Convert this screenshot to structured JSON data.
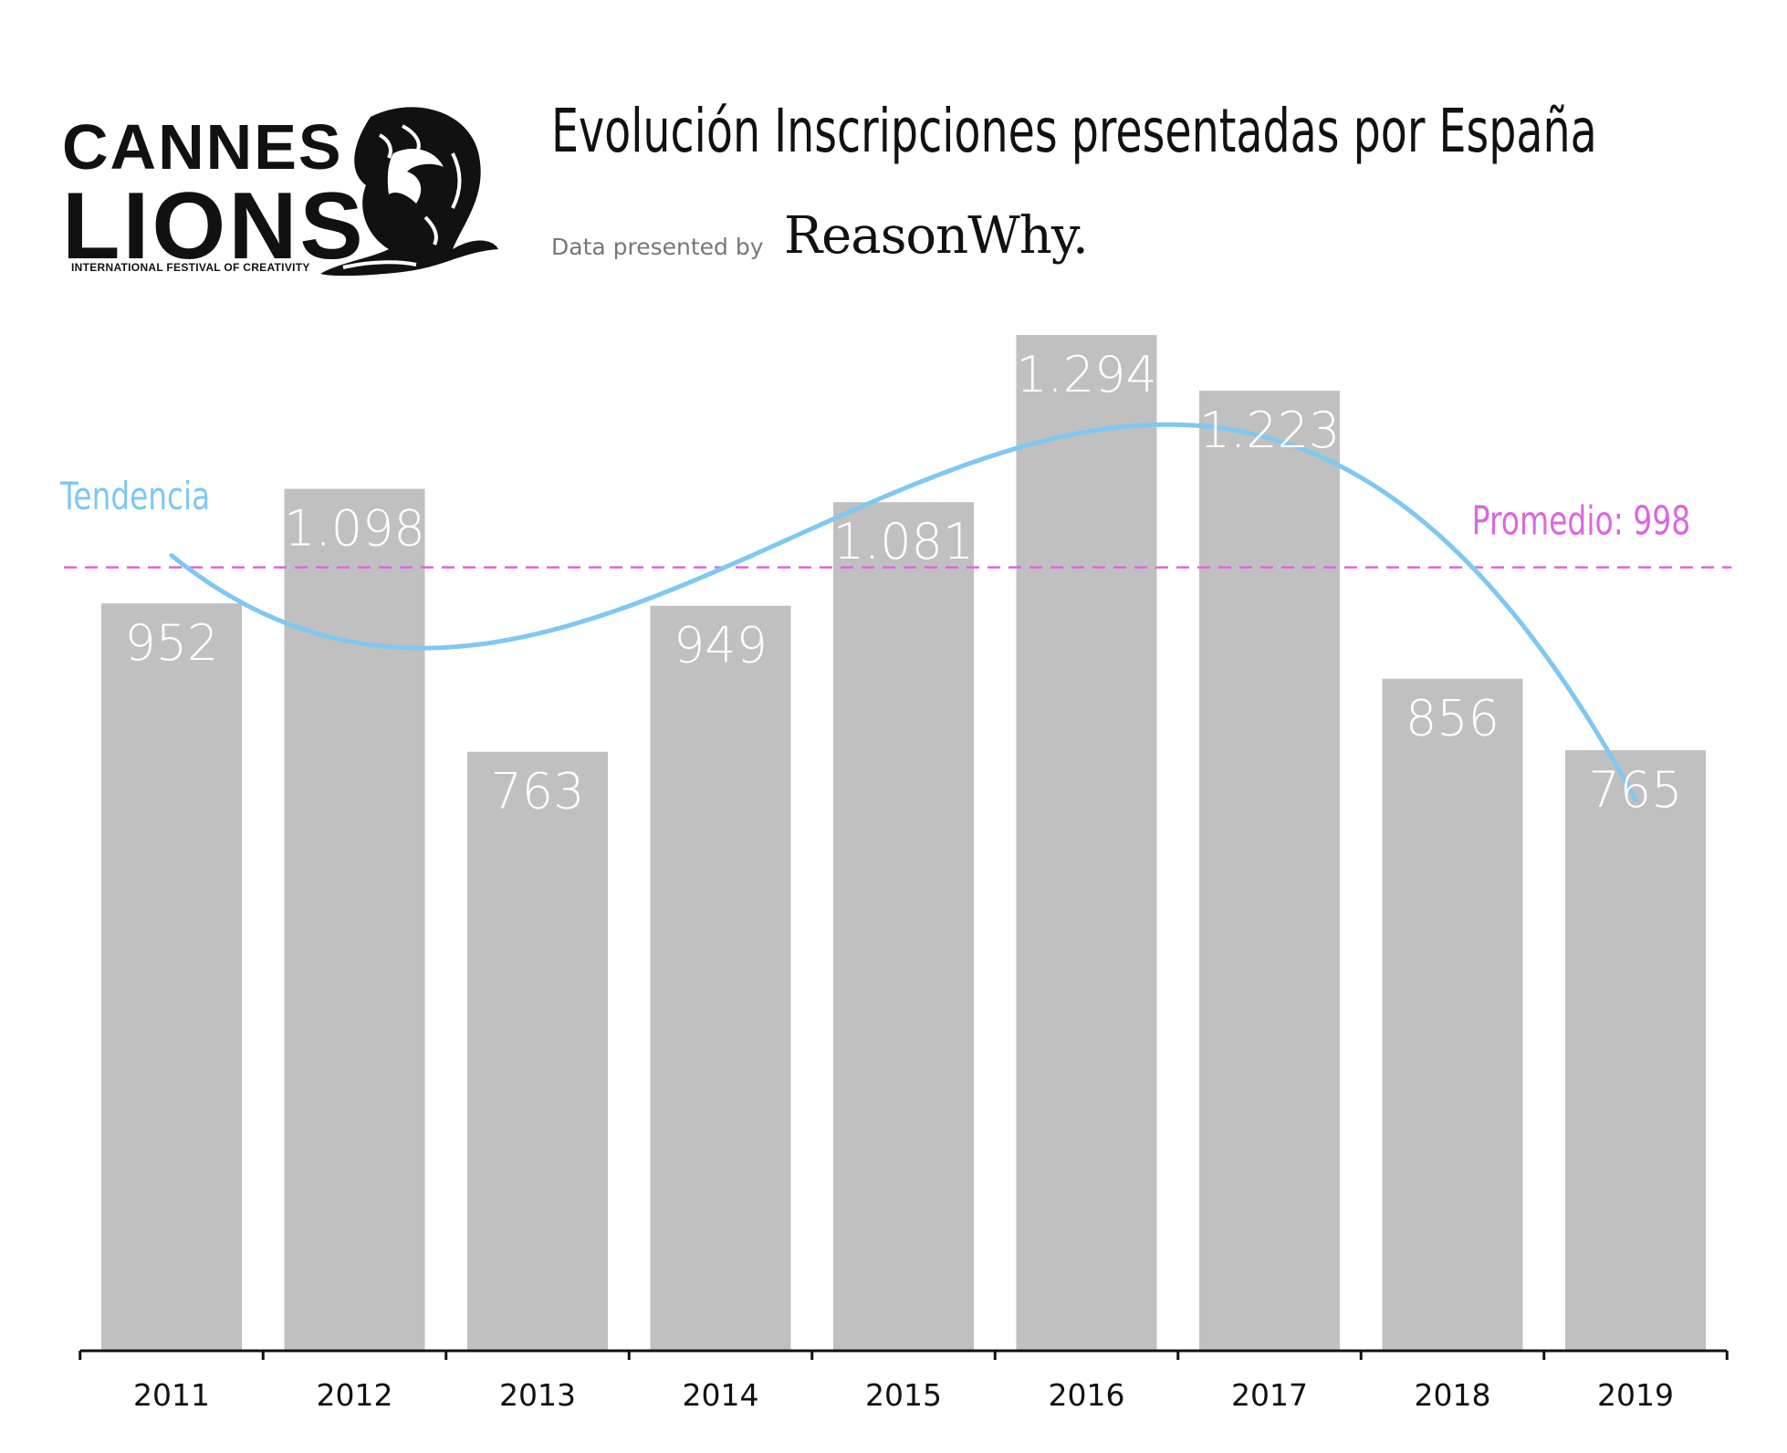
{
  "logo": {
    "line1": "CANNES",
    "line2": "LIONS",
    "tagline": "INTERNATIONAL FESTIVAL OF CREATIVITY",
    "icon": "lion-head-icon"
  },
  "header": {
    "presented_label": "Data presented by",
    "brand": "ReasonWhy."
  },
  "chart_data": {
    "type": "bar",
    "title": "Evolución Inscripciones presentadas por España",
    "categories": [
      "2011",
      "2012",
      "2013",
      "2014",
      "2015",
      "2016",
      "2017",
      "2018",
      "2019"
    ],
    "values": [
      952,
      1098,
      763,
      949,
      1081,
      1294,
      1223,
      856,
      765
    ],
    "value_labels": [
      "952",
      "1.098",
      "763",
      "949",
      "1.081",
      "1.294",
      "1.223",
      "856",
      "765"
    ],
    "ylim": [
      0,
      1294
    ],
    "average": {
      "value": 998,
      "label": "Promedio: 998"
    },
    "trend_label": "Tendencia",
    "grid": false,
    "colors": {
      "bar": "#c0c0c0",
      "trend": "#7ec8f2",
      "average": "#dd66dd",
      "value_label": "#ffffff"
    }
  }
}
